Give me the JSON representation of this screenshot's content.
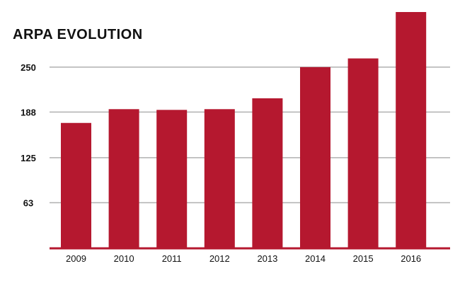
{
  "chart_data": {
    "type": "bar",
    "title": "ARPA EVOLUTION",
    "xlabel": "",
    "ylabel": "",
    "categories": [
      "2009",
      "2010",
      "2011",
      "2012",
      "2013",
      "2014",
      "2015",
      "2016"
    ],
    "values": [
      173,
      192,
      191,
      192,
      207,
      250,
      262,
      326
    ],
    "yticks": [
      "63",
      "125",
      "188",
      "250"
    ],
    "ytick_values": [
      63,
      125,
      188,
      250
    ],
    "ylim": [
      0,
      326
    ],
    "grid": true,
    "legend": "none",
    "colors": {
      "bar": "#b5182f",
      "axis": "#b5182f",
      "grid": "#b0b0b0",
      "text": "#111111"
    }
  }
}
